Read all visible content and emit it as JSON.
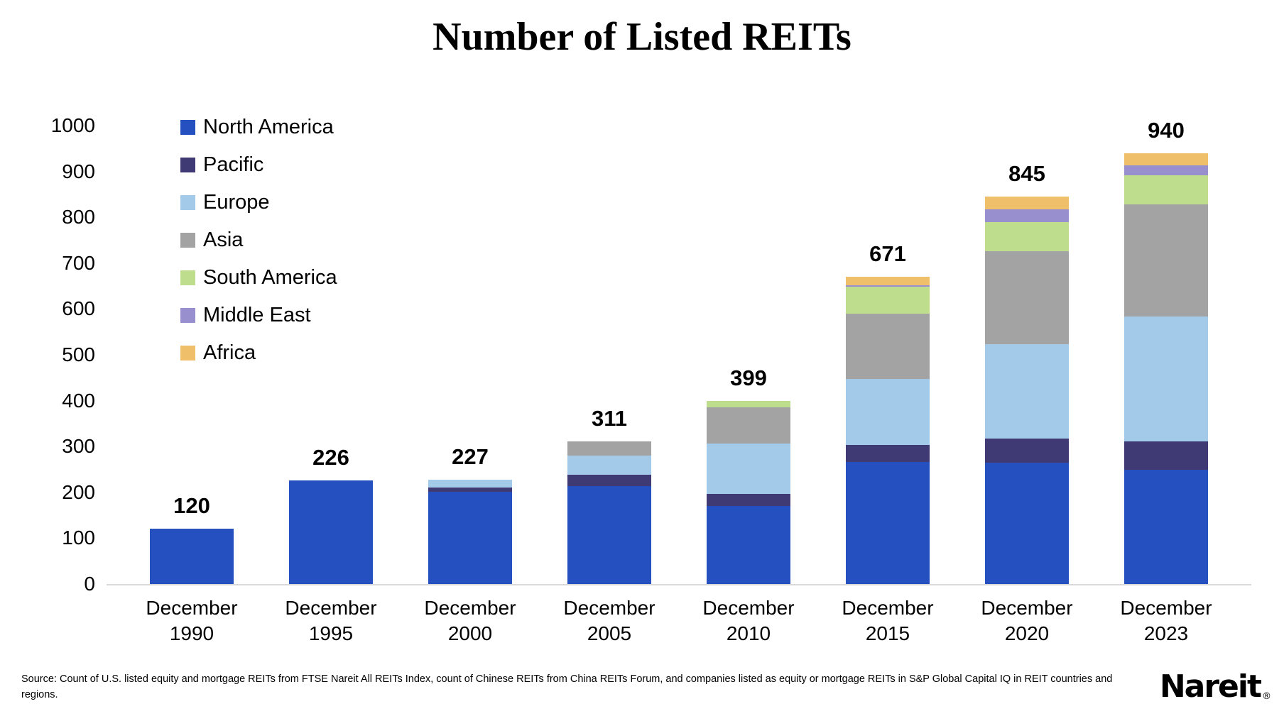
{
  "title": "Number of Listed REITs",
  "chart_data": {
    "type": "bar",
    "stacked": true,
    "title": "Number of Listed REITs",
    "xlabel": "",
    "ylabel": "",
    "ylim": [
      0,
      1000
    ],
    "ytick_step": 100,
    "grid": false,
    "legend_position": "top-left",
    "categories": [
      "December 1990",
      "December 1995",
      "December 2000",
      "December 2005",
      "December 2010",
      "December 2015",
      "December 2020",
      "December 2023"
    ],
    "totals": [
      120,
      226,
      227,
      311,
      399,
      671,
      845,
      940
    ],
    "series": [
      {
        "name": "North America",
        "color": "#2450c0",
        "values": [
          120,
          226,
          201,
          213,
          171,
          266,
          265,
          250
        ]
      },
      {
        "name": "Pacific",
        "color": "#3f3a73",
        "values": [
          0,
          0,
          10,
          25,
          25,
          37,
          52,
          61
        ]
      },
      {
        "name": "Europe",
        "color": "#a3cae8",
        "values": [
          0,
          0,
          16,
          43,
          111,
          144,
          207,
          272
        ]
      },
      {
        "name": "Asia",
        "color": "#a3a3a3",
        "values": [
          0,
          0,
          0,
          30,
          79,
          143,
          202,
          245
        ]
      },
      {
        "name": "South America",
        "color": "#bedd8d",
        "values": [
          0,
          0,
          0,
          0,
          13,
          59,
          63,
          64
        ]
      },
      {
        "name": "Middle East",
        "color": "#978fce",
        "values": [
          0,
          0,
          0,
          0,
          0,
          3,
          28,
          22
        ]
      },
      {
        "name": "Africa",
        "color": "#efc069",
        "values": [
          0,
          0,
          0,
          0,
          0,
          19,
          28,
          26
        ]
      }
    ]
  },
  "footer": {
    "source": "Source: Count of U.S. listed equity and mortgage REITs from FTSE Nareit All REITs Index, count of Chinese REITs from China REITs Forum, and companies listed as equity or mortgage REITs in S&P Global Capital IQ in REIT countries and regions.",
    "logo_text": "Nareit",
    "logo_reg": "®"
  }
}
